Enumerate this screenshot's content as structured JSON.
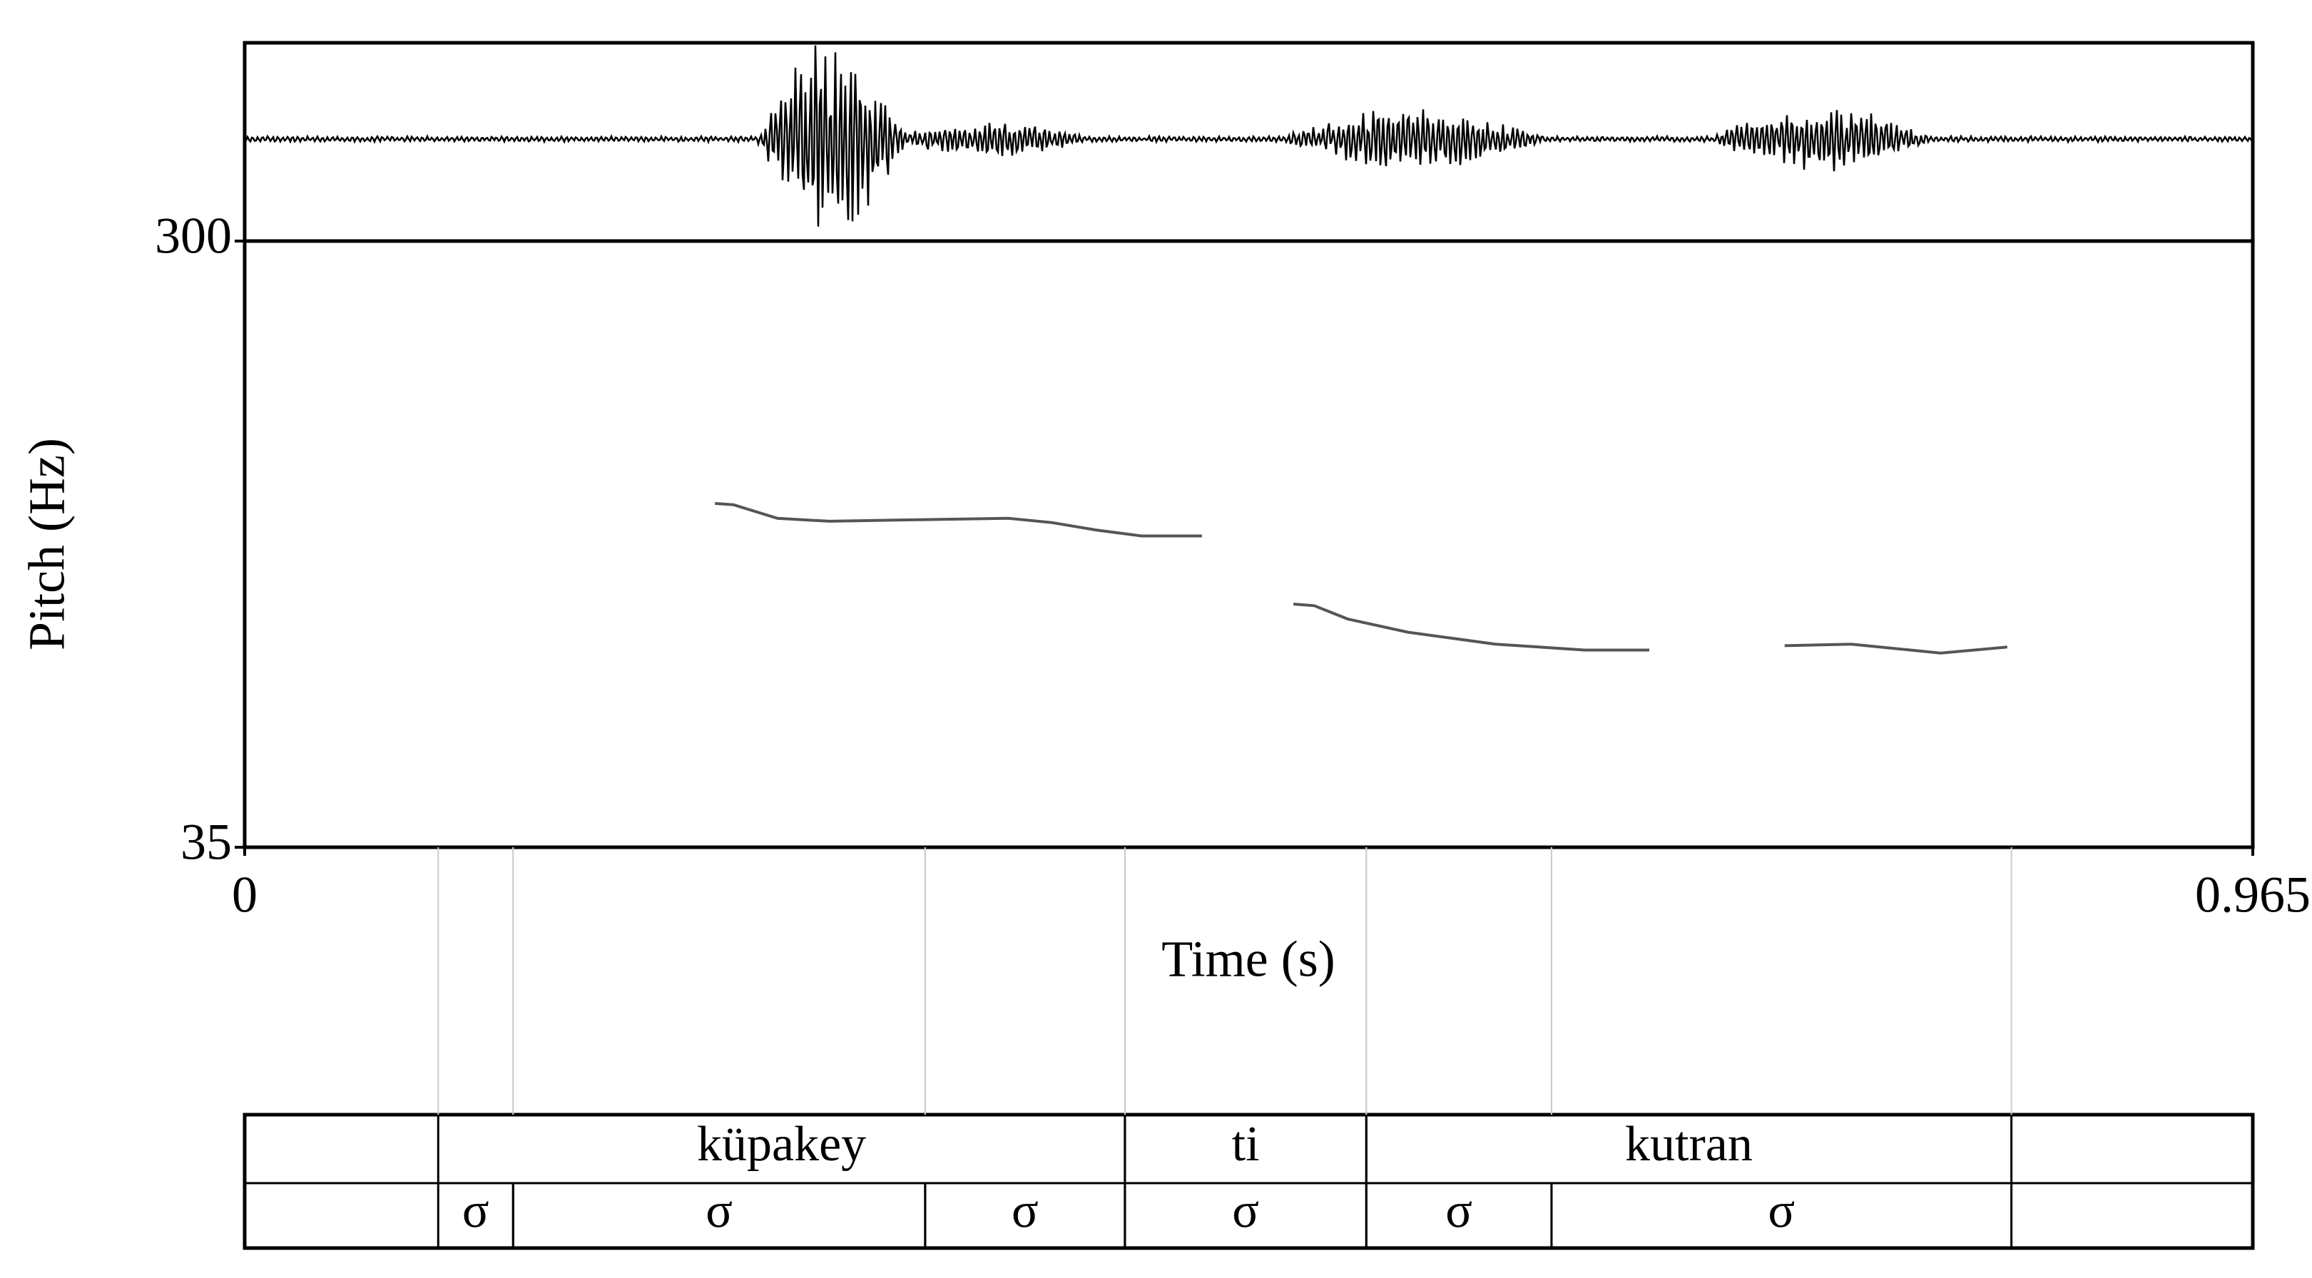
{
  "chart_data": {
    "type": "line",
    "ylabel": "Pitch (Hz)",
    "xlabel": "Time (s)",
    "xlim": [
      0,
      0.965
    ],
    "xticks": [
      0,
      0.965
    ],
    "ylim": [
      35,
      300
    ],
    "yticks": [
      35,
      300
    ],
    "color": "#555555",
    "x": [
      0.226,
      0.235,
      0.256,
      0.281,
      0.324,
      0.367,
      0.388,
      0.409,
      0.431,
      0.46,
      0.482,
      0.504,
      0.514,
      0.53,
      0.559,
      0.601,
      0.644,
      0.675,
      0.708,
      0.74,
      0.772,
      0.815,
      0.847
    ],
    "values": [
      185.3,
      184.7,
      178.8,
      177.5,
      178.2,
      178.8,
      176.9,
      173.7,
      171.1,
      171.1,
      null,
      141.3,
      140.6,
      134.8,
      129.0,
      123.8,
      121.2,
      121.2,
      null,
      123.1,
      123.8,
      119.9,
      122.5
    ],
    "tiers": [
      {
        "intervals": [
          {
            "start": 0.093,
            "end": 0.423,
            "text": "küpakey"
          },
          {
            "start": 0.423,
            "end": 0.539,
            "text": "ti"
          },
          {
            "start": 0.539,
            "end": 0.849,
            "text": "kutran"
          }
        ]
      },
      {
        "intervals": [
          {
            "start": 0.093,
            "end": 0.129,
            "text": "σ"
          },
          {
            "start": 0.129,
            "end": 0.327,
            "text": "σ"
          },
          {
            "start": 0.327,
            "end": 0.423,
            "text": "σ"
          },
          {
            "start": 0.423,
            "end": 0.539,
            "text": "σ"
          },
          {
            "start": 0.539,
            "end": 0.628,
            "text": "σ"
          },
          {
            "start": 0.628,
            "end": 0.849,
            "text": "σ"
          }
        ]
      }
    ]
  }
}
